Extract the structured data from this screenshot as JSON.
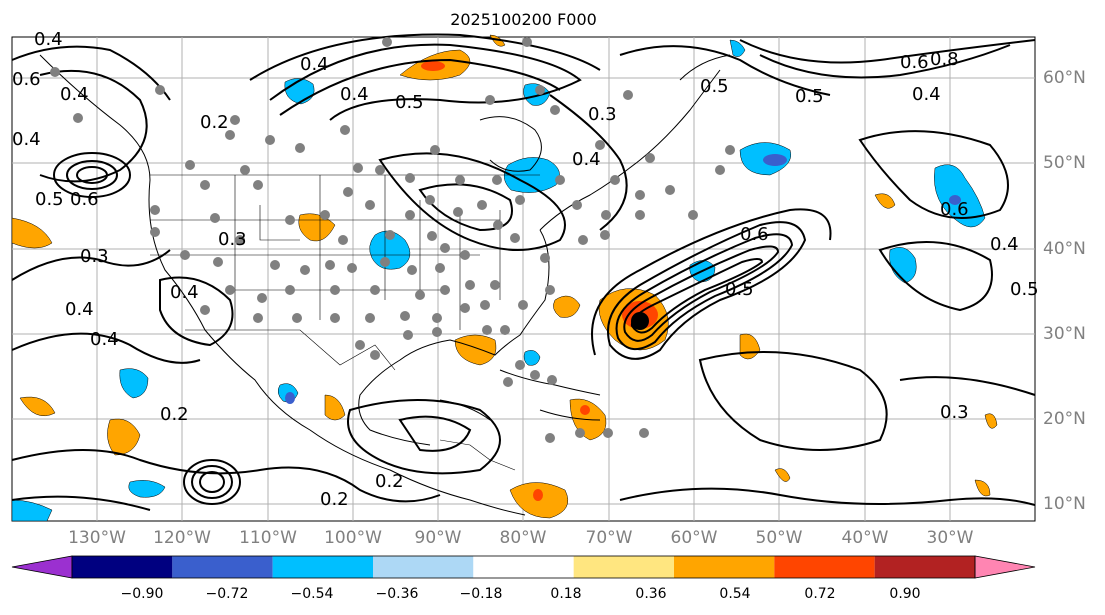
{
  "title": "2025100200 F000",
  "lat_labels": [
    "60°N",
    "50°N",
    "40°N",
    "30°N",
    "20°N",
    "10°N"
  ],
  "lon_labels": [
    "130°W",
    "120°W",
    "110°W",
    "100°W",
    "90°W",
    "80°W",
    "70°W",
    "60°W",
    "50°W",
    "40°W",
    "30°W"
  ],
  "colorbar": {
    "ticks": [
      "−0.90",
      "−0.72",
      "−0.54",
      "−0.36",
      "−0.18",
      "0.18",
      "0.36",
      "0.54",
      "0.72",
      "0.90"
    ],
    "colors": [
      "#9b30d0",
      "#000080",
      "#3a5fcd",
      "#00bfff",
      "#add8f5",
      "#ffffff",
      "#ffe680",
      "#ffa500",
      "#ff4500",
      "#b22222",
      "#ff85b2"
    ]
  },
  "contour_labels": [
    "0.4",
    "0.6",
    "0.4",
    "0.4",
    "0.5",
    "0.6",
    "0.3",
    "0.4",
    "0.4",
    "0.4",
    "0.2",
    "0.2",
    "0.3",
    "0.4",
    "0.4",
    "0.5",
    "0.3",
    "0.4",
    "0.5",
    "0.6",
    "0.8",
    "0.6",
    "0.5",
    "0.4",
    "0.5",
    "0.6",
    "0.4",
    "0.5",
    "0.3",
    "0.2",
    "0.2"
  ],
  "colors": {
    "contour": "#000000",
    "grid": "#b0b0b0",
    "border": "#000000",
    "dots": "#808080"
  }
}
